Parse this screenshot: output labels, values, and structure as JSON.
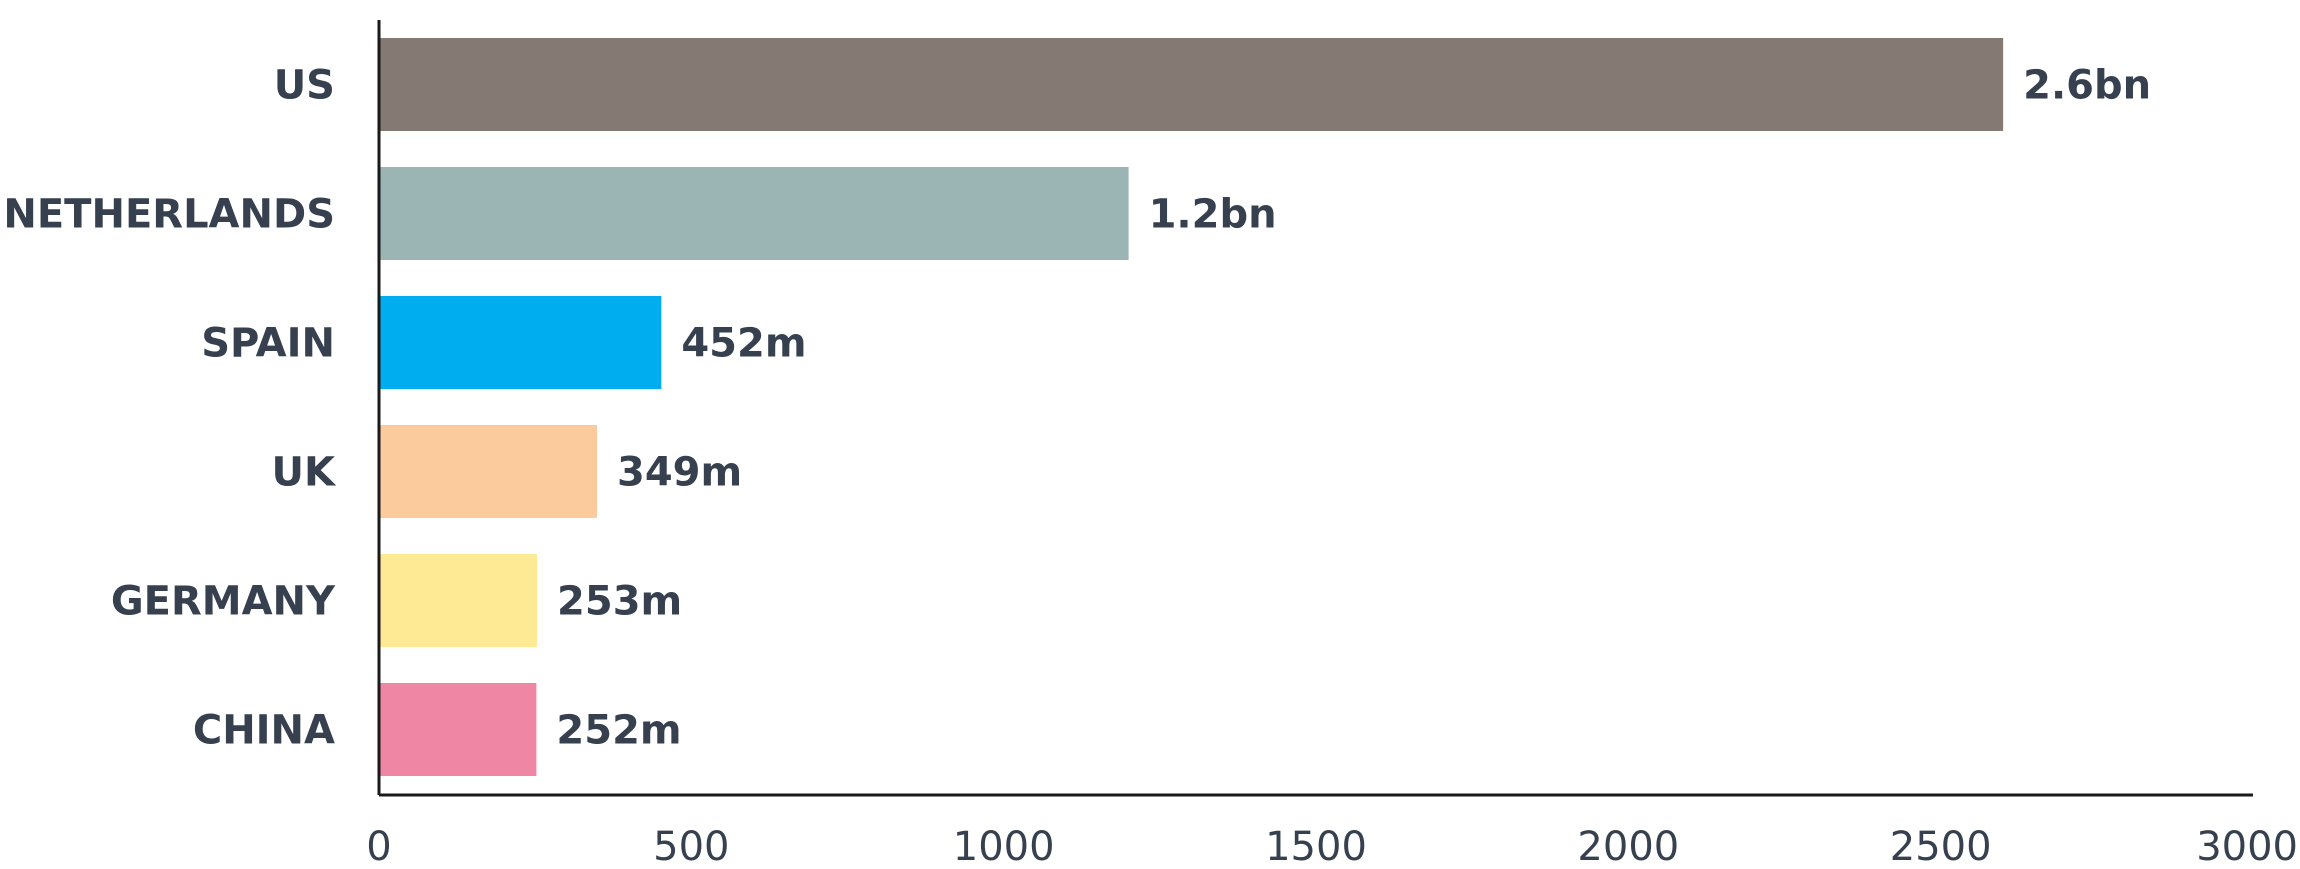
{
  "chart_data": {
    "type": "bar",
    "orientation": "horizontal",
    "categories": [
      "US",
      "NETHERLANDS",
      "SPAIN",
      "UK",
      "GERMANY",
      "CHINA"
    ],
    "values": [
      2600,
      1200,
      452,
      349,
      253,
      252
    ],
    "value_labels": [
      "2.6bn",
      "1.2bn",
      "452m",
      "349m",
      "253m",
      "252m"
    ],
    "colors": [
      "#857974",
      "#9ab5b4",
      "#00aeef",
      "#fbcb9d",
      "#feea94",
      "#ee86a4"
    ],
    "xlim": [
      0,
      3000
    ],
    "xticks": [
      0,
      500,
      1000,
      1500,
      2000,
      2500,
      3000
    ],
    "grid": false,
    "legend": false,
    "title": "",
    "xlabel": "",
    "ylabel": ""
  }
}
